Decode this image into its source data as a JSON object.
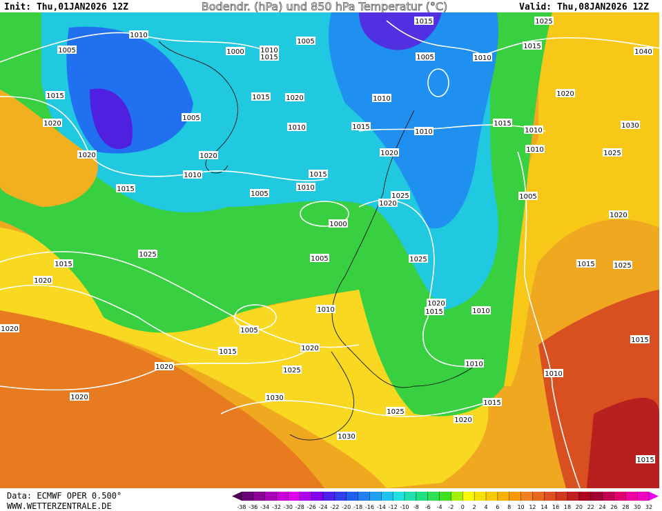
{
  "header": {
    "init": "Init: Thu,01JAN2026 12Z",
    "title": "Bodendr. (hPa) und 850 hPa Temperatur (°C)",
    "valid": "Valid: Thu,08JAN2026 12Z"
  },
  "footer": {
    "data": "Data: ECMWF OPER 0.500°",
    "site": "WWW.WETTERZENTRALE.DE"
  },
  "isobar_labels": [
    1010,
    1005,
    1015,
    1020,
    1020,
    1015,
    1010,
    1005,
    1000,
    1010,
    1015,
    1005,
    1015,
    1020,
    1010,
    1020,
    1015,
    1010,
    1005,
    1000,
    1005,
    1025,
    1015,
    1020,
    1010,
    1015,
    1015,
    1005,
    1010,
    1025,
    1015,
    1040,
    1020,
    1010,
    1015,
    1010,
    1030,
    1010,
    1020,
    1025,
    1020,
    1025,
    1005,
    1020,
    1025,
    1015,
    1025,
    1020,
    1015,
    1010,
    1010,
    1005,
    1015,
    1020,
    1025,
    1020,
    1020,
    1030,
    1025,
    1015,
    1020,
    1030,
    1010,
    1010,
    1015,
    1015,
    1020
  ],
  "colorbar": {
    "ticks": [
      -38,
      -36,
      -34,
      -32,
      -30,
      -28,
      -26,
      -24,
      -22,
      -20,
      -18,
      -16,
      -14,
      -12,
      -10,
      -8,
      -6,
      -4,
      -2,
      0,
      2,
      4,
      6,
      8,
      10,
      12,
      14,
      16,
      18,
      20,
      22,
      24,
      26,
      28,
      30,
      32
    ],
    "colors": [
      "#4b0050",
      "#6a0078",
      "#8a0099",
      "#a800b8",
      "#c800d8",
      "#e000f0",
      "#b000f0",
      "#8000f0",
      "#5020f0",
      "#3040f0",
      "#2060f0",
      "#2080f0",
      "#20a0f0",
      "#20c0f0",
      "#20e0e0",
      "#20e0b0",
      "#20e080",
      "#30e050",
      "#40e020",
      "#a0f000",
      "#f8f800",
      "#f8e000",
      "#f8c800",
      "#f8b000",
      "#f89800",
      "#f08020",
      "#e86820",
      "#e05020",
      "#d03820",
      "#c02020",
      "#b00020",
      "#a00030",
      "#c00050",
      "#e00070",
      "#f000a0",
      "#f000c0",
      "#f000f0"
    ]
  }
}
